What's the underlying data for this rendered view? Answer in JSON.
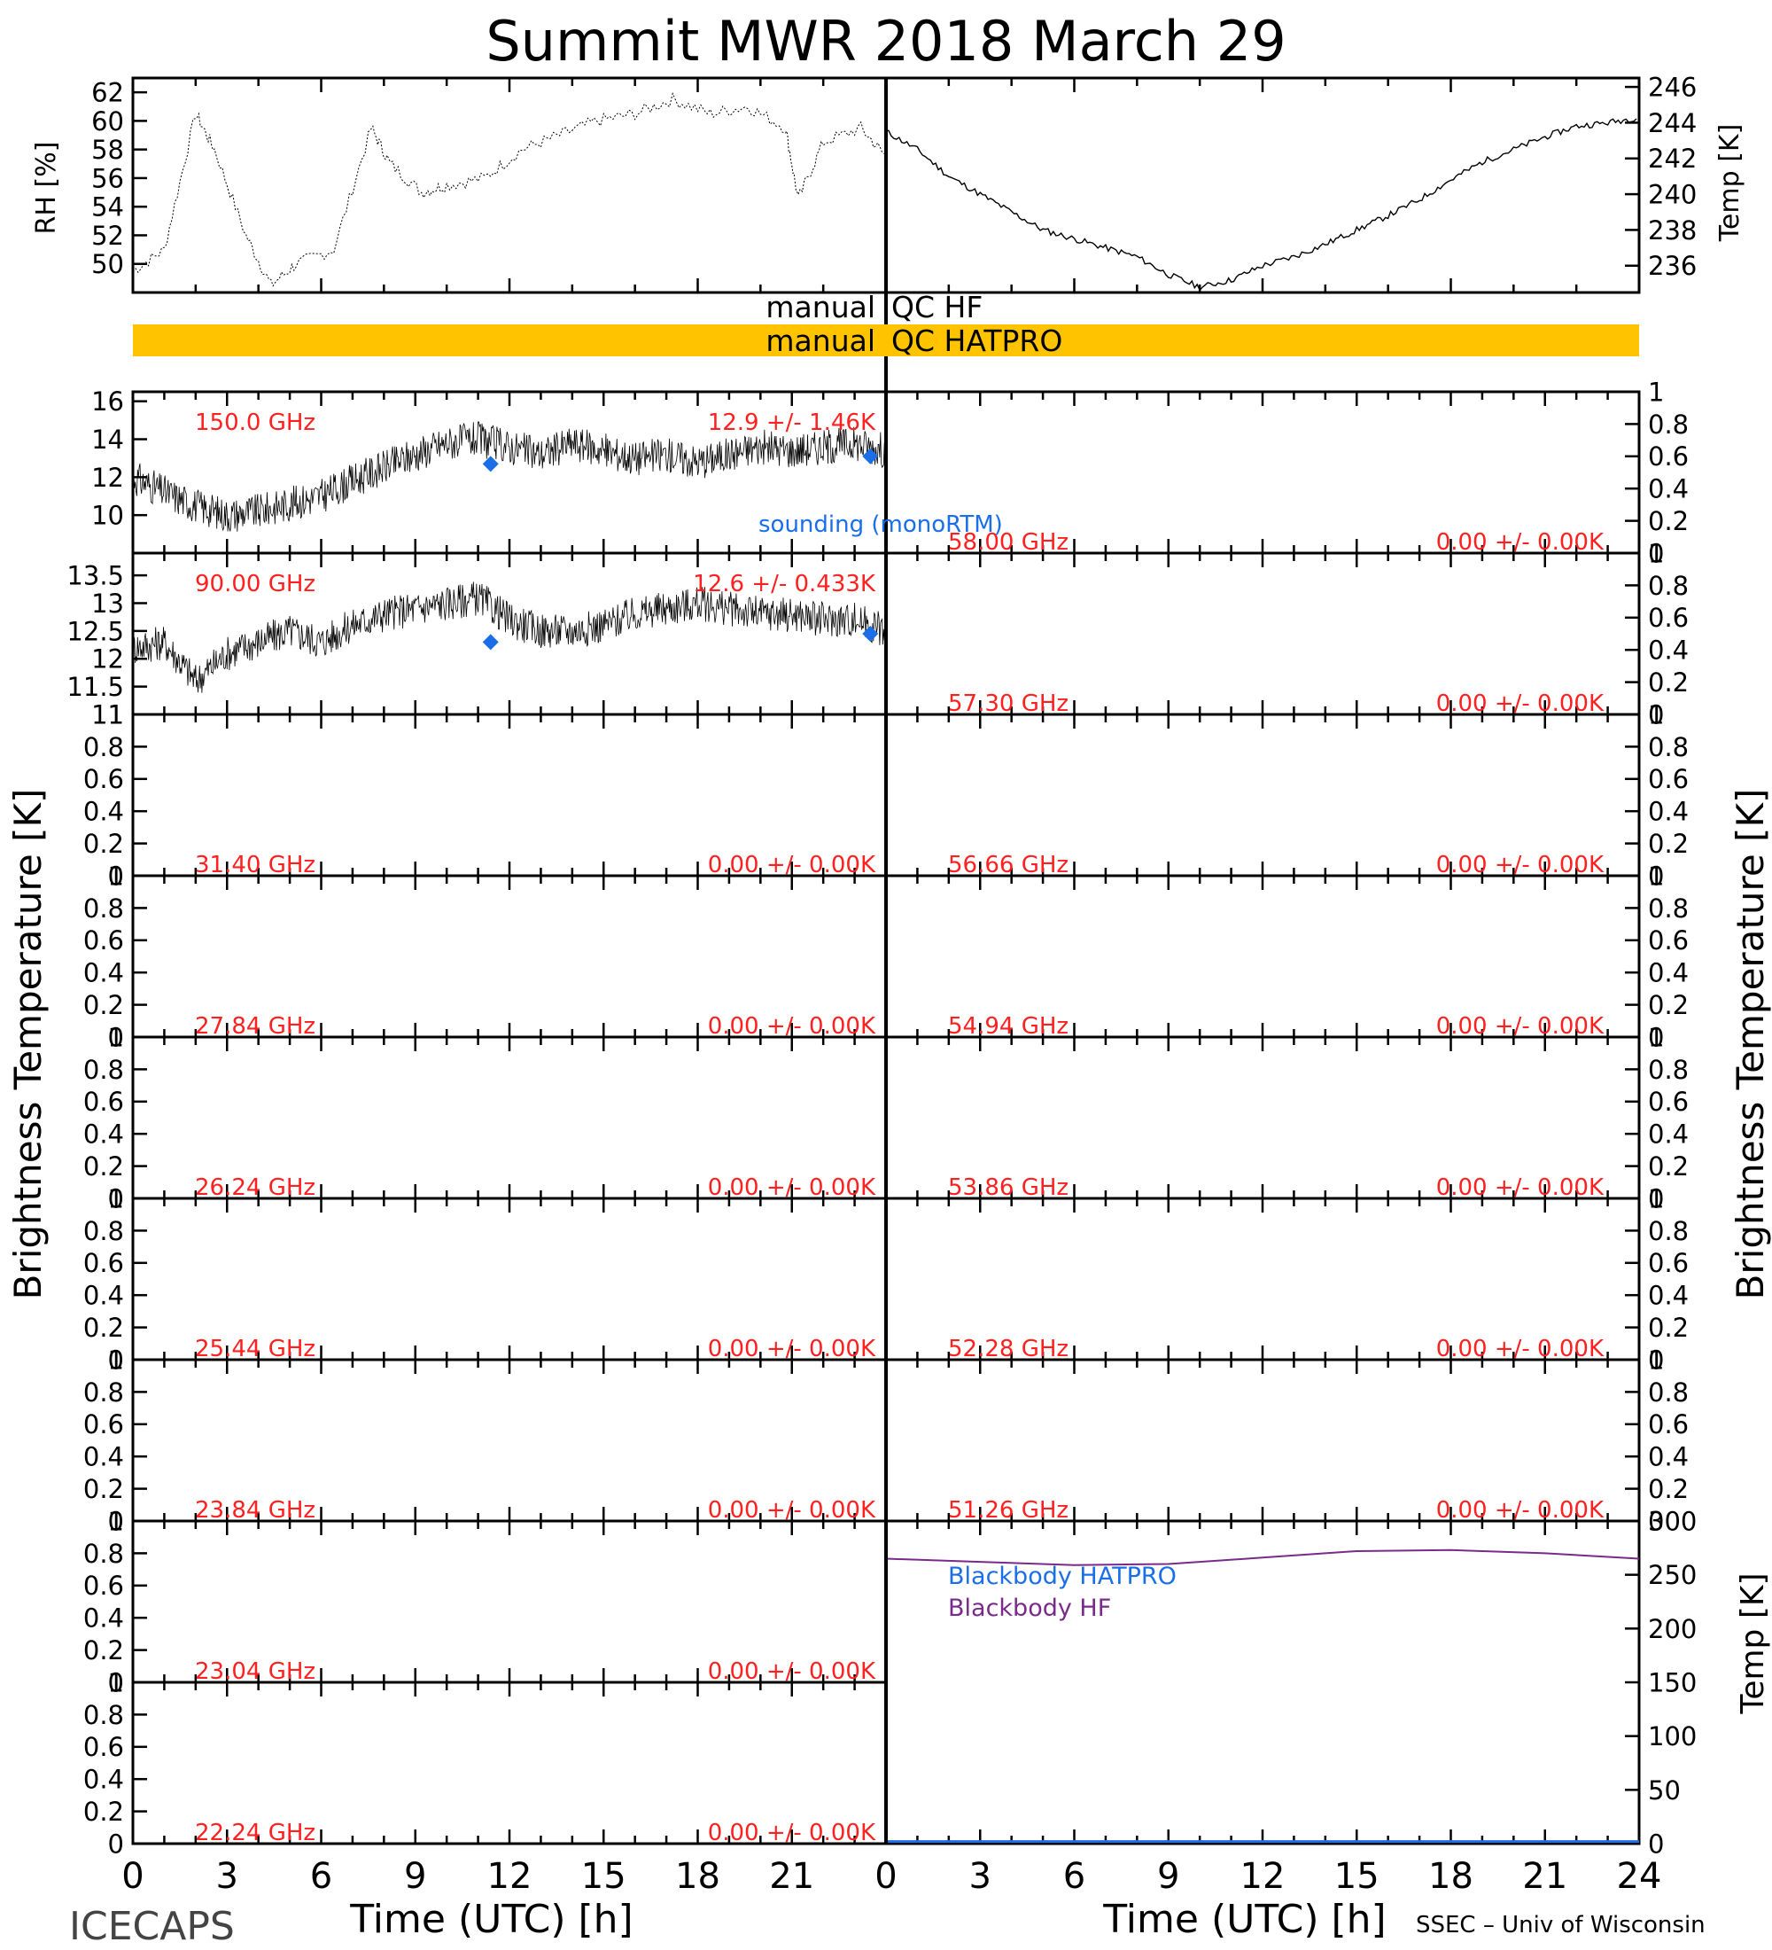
{
  "page": {
    "title": "Summit MWR 2018 March 29",
    "footer_left": "ICECAPS",
    "footer_right": "SSEC – Univ of Wisconsin",
    "left_axis_title": "Brightness Temperature [K]",
    "right_axis_title": "Brightness Temperature [K]"
  },
  "colors": {
    "axis": "#000000",
    "data_trace": "#000000",
    "stats_text": "#ff2020",
    "sounding": "#1a6fe8",
    "qc_bar": "#ffc300",
    "bb_hatpro": "#1a6fe8",
    "bb_hf": "#7a2a8a"
  },
  "qc": {
    "row1_left": "manual",
    "row1_right": "QC HF",
    "row2_left": "manual",
    "row2_right": "QC HATPRO"
  },
  "legend": {
    "sounding": "sounding (monoRTM)",
    "bb_hatpro": "Blackbody HATPRO",
    "bb_hf": "Blackbody HF"
  },
  "chart_data": [
    {
      "type": "line",
      "id": "rh",
      "ylabel": "RH [%]",
      "xlim": [
        0,
        12
      ],
      "ylim": [
        48,
        63
      ],
      "yticks": [
        50,
        52,
        54,
        56,
        58,
        60,
        62
      ],
      "x": [
        0,
        0.5,
        1,
        1.3,
        1.8,
        2.2,
        2.6,
        3.2,
        3.8,
        4.1,
        4.6,
        5.0,
        5.6,
        6.2,
        6.8,
        7.4,
        8.0,
        8.6,
        9.2,
        9.8,
        10.4,
        10.6,
        11.0,
        11.6,
        12.0
      ],
      "y": [
        49.5,
        51,
        60.5,
        58,
        52,
        48.5,
        50,
        51,
        59.5,
        57,
        55,
        55.5,
        56,
        58,
        59,
        60,
        60.5,
        61.5,
        60.5,
        61,
        59.5,
        54.5,
        58.5,
        59.5,
        57.5
      ]
    },
    {
      "type": "line",
      "id": "temp",
      "ylabel": "Temp [K]",
      "xlim": [
        12,
        24
      ],
      "ylim": [
        234.5,
        246.5
      ],
      "yticks": [
        236,
        238,
        240,
        242,
        244,
        246
      ],
      "x": [
        12,
        12.5,
        13,
        13.5,
        14,
        14.5,
        15,
        15.5,
        16,
        16.5,
        17,
        17.5,
        18,
        18.5,
        19,
        19.5,
        20,
        20.5,
        21,
        21.5,
        22,
        22.5,
        23,
        23.5,
        24
      ],
      "y": [
        243.5,
        242.5,
        241,
        240,
        239,
        238,
        237.5,
        237,
        236.5,
        235.5,
        234.8,
        235.2,
        236,
        236.5,
        237.2,
        238,
        238.8,
        239.7,
        240.8,
        241.8,
        242.5,
        243.2,
        243.8,
        244,
        244.3
      ]
    },
    {
      "type": "line",
      "channel": "150.0 GHz",
      "stats": "12.9 +/- 1.46K",
      "ylim": [
        8,
        16.5
      ],
      "yticks": [
        10,
        12,
        14,
        16
      ],
      "x": [
        0,
        1,
        2,
        3,
        4,
        5,
        6,
        7,
        8,
        9,
        10,
        11,
        12,
        13,
        14,
        15,
        16,
        17,
        18,
        19,
        20,
        21,
        22,
        23,
        24
      ],
      "y": [
        12,
        11.2,
        10.5,
        10,
        10.2,
        10.6,
        11,
        11.8,
        12.5,
        13.2,
        13.8,
        14,
        13.6,
        13.2,
        13.8,
        13.4,
        13,
        13.2,
        12.8,
        13.2,
        13.6,
        13.4,
        13.6,
        13.8,
        13.4
      ],
      "sounding": {
        "x": [
          11.4,
          23.5
        ],
        "y": [
          12.7,
          13.1
        ]
      }
    },
    {
      "type": "line",
      "channel": "90.00 GHz",
      "stats": "12.6 +/- 0.433K",
      "ylim": [
        11,
        13.9
      ],
      "yticks": [
        11.0,
        11.5,
        12.0,
        12.5,
        13.0,
        13.5
      ],
      "x": [
        0,
        1,
        2,
        3,
        4,
        5,
        6,
        7,
        8,
        9,
        10,
        11,
        12,
        13,
        14,
        15,
        16,
        17,
        18,
        19,
        20,
        21,
        22,
        23,
        24
      ],
      "y": [
        12.2,
        12.3,
        11.6,
        12.1,
        12.3,
        12.5,
        12.3,
        12.6,
        12.8,
        12.9,
        13.0,
        13.1,
        12.7,
        12.5,
        12.5,
        12.6,
        12.8,
        12.9,
        13.0,
        12.9,
        12.8,
        12.8,
        12.7,
        12.7,
        12.5
      ],
      "sounding": {
        "x": [
          11.4,
          23.5
        ],
        "y": [
          12.3,
          12.45
        ]
      }
    },
    {
      "type": "line",
      "channel": "31.40 GHz",
      "stats": "0.00 +/- 0.00K",
      "ylim": [
        0,
        1
      ],
      "yticks": [
        0.0,
        0.2,
        0.4,
        0.6,
        0.8,
        1.0
      ],
      "x": [],
      "y": []
    },
    {
      "type": "line",
      "channel": "27.84 GHz",
      "stats": "0.00 +/- 0.00K",
      "ylim": [
        0,
        1
      ],
      "yticks": [
        0.0,
        0.2,
        0.4,
        0.6,
        0.8,
        1.0
      ],
      "x": [],
      "y": []
    },
    {
      "type": "line",
      "channel": "26.24 GHz",
      "stats": "0.00 +/- 0.00K",
      "ylim": [
        0,
        1
      ],
      "yticks": [
        0.0,
        0.2,
        0.4,
        0.6,
        0.8,
        1.0
      ],
      "x": [],
      "y": []
    },
    {
      "type": "line",
      "channel": "25.44 GHz",
      "stats": "0.00 +/- 0.00K",
      "ylim": [
        0,
        1
      ],
      "yticks": [
        0.0,
        0.2,
        0.4,
        0.6,
        0.8,
        1.0
      ],
      "x": [],
      "y": []
    },
    {
      "type": "line",
      "channel": "23.84 GHz",
      "stats": "0.00 +/- 0.00K",
      "ylim": [
        0,
        1
      ],
      "yticks": [
        0.0,
        0.2,
        0.4,
        0.6,
        0.8,
        1.0
      ],
      "x": [],
      "y": []
    },
    {
      "type": "line",
      "channel": "23.04 GHz",
      "stats": "0.00 +/- 0.00K",
      "ylim": [
        0,
        1
      ],
      "yticks": [
        0.0,
        0.2,
        0.4,
        0.6,
        0.8,
        1.0
      ],
      "x": [],
      "y": []
    },
    {
      "type": "line",
      "channel": "22.24 GHz",
      "stats": "0.00 +/- 0.00K",
      "ylim": [
        0,
        1
      ],
      "yticks": [
        0.0,
        0.2,
        0.4,
        0.6,
        0.8,
        1.0
      ],
      "x": [],
      "y": []
    },
    {
      "type": "line",
      "channel": "58.00 GHz",
      "stats": "0.00 +/- 0.00K",
      "ylim": [
        0,
        1
      ],
      "yticks": [
        0.0,
        0.2,
        0.4,
        0.6,
        0.8,
        1.0
      ],
      "x": [],
      "y": []
    },
    {
      "type": "line",
      "channel": "57.30 GHz",
      "stats": "0.00 +/- 0.00K",
      "ylim": [
        0,
        1
      ],
      "yticks": [
        0.0,
        0.2,
        0.4,
        0.6,
        0.8,
        1.0
      ],
      "x": [],
      "y": []
    },
    {
      "type": "line",
      "channel": "56.66 GHz",
      "stats": "0.00 +/- 0.00K",
      "ylim": [
        0,
        1
      ],
      "yticks": [
        0.0,
        0.2,
        0.4,
        0.6,
        0.8,
        1.0
      ],
      "x": [],
      "y": []
    },
    {
      "type": "line",
      "channel": "54.94 GHz",
      "stats": "0.00 +/- 0.00K",
      "ylim": [
        0,
        1
      ],
      "yticks": [
        0.0,
        0.2,
        0.4,
        0.6,
        0.8,
        1.0
      ],
      "x": [],
      "y": []
    },
    {
      "type": "line",
      "channel": "53.86 GHz",
      "stats": "0.00 +/- 0.00K",
      "ylim": [
        0,
        1
      ],
      "yticks": [
        0.0,
        0.2,
        0.4,
        0.6,
        0.8,
        1.0
      ],
      "x": [],
      "y": []
    },
    {
      "type": "line",
      "channel": "52.28 GHz",
      "stats": "0.00 +/- 0.00K",
      "ylim": [
        0,
        1
      ],
      "yticks": [
        0.0,
        0.2,
        0.4,
        0.6,
        0.8,
        1.0
      ],
      "x": [],
      "y": []
    },
    {
      "type": "line",
      "channel": "51.26 GHz",
      "stats": "0.00 +/- 0.00K",
      "ylim": [
        0,
        1
      ],
      "yticks": [
        0.0,
        0.2,
        0.4,
        0.6,
        0.8,
        1.0
      ],
      "x": [],
      "y": []
    },
    {
      "type": "line",
      "id": "blackbody",
      "ylabel": "Temp [K]",
      "ylim": [
        0,
        300
      ],
      "yticks": [
        0,
        50,
        100,
        150,
        200,
        250,
        300
      ],
      "series": [
        {
          "name": "Blackbody HF",
          "x": [
            0,
            3,
            6,
            9,
            12,
            15,
            18,
            21,
            24
          ],
          "y": [
            265,
            262,
            259,
            260,
            266,
            272,
            273,
            270,
            265
          ]
        },
        {
          "name": "Blackbody HATPRO",
          "x": [
            0,
            24
          ],
          "y": [
            2,
            2
          ]
        }
      ]
    }
  ],
  "xaxis": {
    "label": "Time (UTC) [h]",
    "xlim": [
      0,
      24
    ],
    "ticks": [
      0,
      3,
      6,
      9,
      12,
      15,
      18,
      21
    ],
    "ticks_right": [
      0,
      3,
      6,
      9,
      12,
      15,
      18,
      21,
      24
    ]
  }
}
